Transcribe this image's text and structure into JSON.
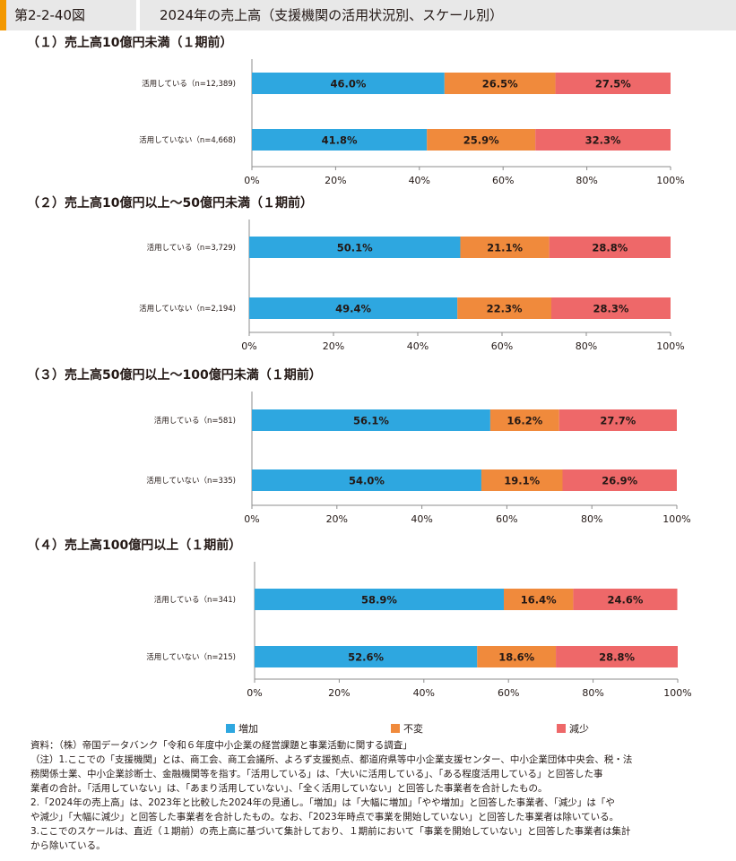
{
  "header": {
    "figure_number": "第2-2-40図",
    "title": "2024年の売上高（支援機関の活用状況別、スケール別）"
  },
  "colors": {
    "increase": "#2ea7e0",
    "unchanged": "#f08a3c",
    "decrease": "#ee6869"
  },
  "legend": {
    "increase": "増加",
    "unchanged": "不変",
    "decrease": "減少"
  },
  "chart_data": [
    {
      "type": "bar",
      "orientation": "horizontal-stacked-100",
      "title": "（１）売上高10億円未満（１期前）",
      "categories": [
        "活用している（n=12,389)",
        "活用していない（n=4,668)"
      ],
      "series": [
        {
          "name": "増加",
          "values": [
            46.0,
            41.8
          ]
        },
        {
          "name": "不変",
          "values": [
            26.5,
            25.9
          ]
        },
        {
          "name": "減少",
          "values": [
            27.5,
            32.3
          ]
        }
      ],
      "x_ticks": [
        "0%",
        "20%",
        "40%",
        "60%",
        "80%",
        "100%"
      ],
      "xlim": [
        0,
        100
      ]
    },
    {
      "type": "bar",
      "orientation": "horizontal-stacked-100",
      "title": "（２）売上高10億円以上～50億円未満（１期前）",
      "categories": [
        "活用している（n=3,729)",
        "活用していない（n=2,194)"
      ],
      "series": [
        {
          "name": "増加",
          "values": [
            50.1,
            49.4
          ]
        },
        {
          "name": "不変",
          "values": [
            21.1,
            22.3
          ]
        },
        {
          "name": "減少",
          "values": [
            28.8,
            28.3
          ]
        }
      ],
      "x_ticks": [
        "0%",
        "20%",
        "40%",
        "60%",
        "80%",
        "100%"
      ],
      "xlim": [
        0,
        100
      ]
    },
    {
      "type": "bar",
      "orientation": "horizontal-stacked-100",
      "title": "（３）売上高50億円以上～100億円未満（１期前）",
      "categories": [
        "活用している（n=581)",
        "活用していない（n=335)"
      ],
      "series": [
        {
          "name": "増加",
          "values": [
            56.1,
            54.0
          ]
        },
        {
          "name": "不変",
          "values": [
            16.2,
            19.1
          ]
        },
        {
          "name": "減少",
          "values": [
            27.7,
            26.9
          ]
        }
      ],
      "x_ticks": [
        "0%",
        "20%",
        "40%",
        "60%",
        "80%",
        "100%"
      ],
      "xlim": [
        0,
        100
      ]
    },
    {
      "type": "bar",
      "orientation": "horizontal-stacked-100",
      "title": "（４）売上高100億円以上（１期前）",
      "categories": [
        "活用している（n=341)",
        "活用していない（n=215)"
      ],
      "series": [
        {
          "name": "増加",
          "values": [
            58.9,
            52.6
          ]
        },
        {
          "name": "不変",
          "values": [
            16.4,
            18.6
          ]
        },
        {
          "name": "減少",
          "values": [
            24.6,
            28.8
          ]
        }
      ],
      "x_ticks": [
        "0%",
        "20%",
        "40%",
        "60%",
        "80%",
        "100%"
      ],
      "xlim": [
        0,
        100
      ]
    }
  ],
  "notes": [
    "資料：（株）帝国データバンク「令和６年度中小企業の経営課題と事業活動に関する調査」",
    "（注）1.ここでの「支援機関」とは、商工会、商工会議所、よろず支援拠点、都道府県等中小企業支援センター、中小企業団体中央会、税・法",
    "務関係士業、中小企業診断士、金融機関等を指す。「活用している」は、「大いに活用している」、「ある程度活用している」と回答した事",
    "業者の合計。「活用していない」は、「あまり活用していない」、「全く活用していない」と回答した事業者を合計したもの。",
    "2.「2024年の売上高」は、2023年と比較した2024年の見通し。「増加」は「大幅に増加」「やや増加」と回答した事業者、「減少」は「や",
    "や減少」「大幅に減少」と回答した事業者を合計したもの。なお、「2023年時点で事業を開始していない」と回答した事業者は除いている。",
    "3.ここでのスケールは、直近（１期前）の売上高に基づいて集計しており、１期前において「事業を開始していない」と回答した事業者は集計",
    "から除いている。"
  ]
}
